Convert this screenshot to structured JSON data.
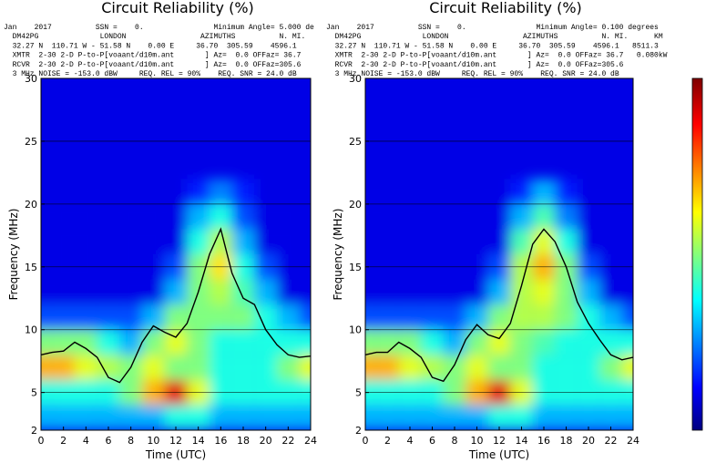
{
  "chart_data": [
    {
      "type": "heatmap-line",
      "title": "Circuit Reliability (%)",
      "header": [
        "Jan    2017          SSN =    0.                Minimum Angle= 5.000 de",
        "  DM42PG              LONDON                 AZIMUTHS          N. MI.",
        "  32.27 N  110.71 W - 51.58 N    0.00 E     36.70  305.59    4596.1",
        "  XMTR  2-30 2-D P-to-P[voaant/d10m.ant       ] Az=  0.0 OFFaz= 36.7",
        "  RCVR  2-30 2-D P-to-P[voaant/d10m.ant       ] Az=  0.0 OFFaz=305.6",
        "  3 MHz NOISE = -153.0 dBW     REQ. REL = 90%    REQ. SNR = 24.0 dB"
      ],
      "x_label": "Time (UTC)",
      "y_label": "Frequency (MHz)",
      "xlim": [
        0,
        24
      ],
      "xticks": [
        0,
        2,
        4,
        6,
        8,
        10,
        12,
        14,
        16,
        18,
        20,
        22,
        24
      ],
      "ylim": [
        2,
        30
      ],
      "yticks": [
        2,
        5,
        10,
        15,
        20,
        25,
        30
      ],
      "grid": true,
      "z_hours": [
        0,
        2,
        4,
        6,
        8,
        10,
        12,
        14,
        16,
        18,
        20,
        22,
        24
      ],
      "z_freqs": [
        3,
        5,
        7,
        9,
        11,
        13,
        15,
        17,
        19,
        21
      ],
      "z": [
        [
          0.2,
          0.2,
          0.2,
          0.2,
          0.2,
          0.2,
          0.3,
          0.3,
          0.2,
          0.2,
          0.2,
          0.2,
          0.2
        ],
        [
          0.3,
          0.3,
          0.3,
          0.3,
          0.4,
          0.6,
          0.8,
          0.5,
          0.3,
          0.3,
          0.3,
          0.3,
          0.3
        ],
        [
          0.6,
          0.6,
          0.5,
          0.45,
          0.4,
          0.5,
          0.4,
          0.4,
          0.3,
          0.3,
          0.3,
          0.4,
          0.5
        ],
        [
          0.4,
          0.4,
          0.4,
          0.3,
          0.2,
          0.4,
          0.5,
          0.4,
          0.3,
          0.3,
          0.3,
          0.3,
          0.3
        ],
        [
          0.1,
          0.1,
          0.1,
          0.1,
          0.1,
          0.2,
          0.4,
          0.4,
          0.4,
          0.4,
          0.3,
          0.2,
          0.1
        ],
        [
          0,
          0,
          0,
          0,
          0,
          0,
          0.2,
          0.4,
          0.45,
          0.35,
          0.2,
          0,
          0
        ],
        [
          0,
          0,
          0,
          0,
          0,
          0,
          0.1,
          0.4,
          0.55,
          0.3,
          0.1,
          0,
          0
        ],
        [
          0,
          0,
          0,
          0,
          0,
          0,
          0,
          0.3,
          0.45,
          0.2,
          0,
          0,
          0
        ],
        [
          0,
          0,
          0,
          0,
          0,
          0,
          0,
          0.2,
          0.3,
          0.1,
          0,
          0,
          0
        ],
        [
          0,
          0,
          0,
          0,
          0,
          0,
          0,
          0.05,
          0.15,
          0.05,
          0,
          0,
          0
        ]
      ],
      "x": [
        0,
        1,
        2,
        3,
        4,
        5,
        6,
        7,
        8,
        9,
        10,
        11,
        12,
        13,
        14,
        15,
        16,
        17,
        18,
        19,
        20,
        21,
        22,
        23,
        24
      ],
      "series": [
        {
          "color": "#000000",
          "values": [
            8,
            8.2,
            8.3,
            9,
            8.5,
            7.8,
            6.2,
            5.8,
            7,
            9,
            10.3,
            9.8,
            9.4,
            10.5,
            13,
            16,
            18,
            14.5,
            12.5,
            12,
            10,
            8.8,
            8,
            7.8,
            7.9
          ]
        }
      ]
    },
    {
      "type": "heatmap-line",
      "title": "Circuit Reliability (%)",
      "header": [
        "Jan    2017          SSN =    0.                Minimum Angle= 0.100 degrees",
        "  DM42PG              LONDON                 AZIMUTHS          N. MI.      KM",
        "  32.27 N  110.71 W - 51.58 N    0.00 E     36.70  305.59    4596.1   8511.3",
        "  XMTR  2-30 2-D P-to-P[voaant/d10m.ant       ] Az=  0.0 OFFaz= 36.7   0.080kW",
        "  RCVR  2-30 2-D P-to-P[voaant/d10m.ant       ] Az=  0.0 OFFaz=305.6",
        "  3 MHz NOISE = -153.0 dBW     REQ. REL = 90%    REQ. SNR = 24.0 dB"
      ],
      "x_label": "Time (UTC)",
      "y_label": "Frequency (MHz)",
      "xlim": [
        0,
        24
      ],
      "xticks": [
        0,
        2,
        4,
        6,
        8,
        10,
        12,
        14,
        16,
        18,
        20,
        22,
        24
      ],
      "ylim": [
        2,
        30
      ],
      "yticks": [
        2,
        5,
        10,
        15,
        20,
        25,
        30
      ],
      "grid": true,
      "z_hours": [
        0,
        2,
        4,
        6,
        8,
        10,
        12,
        14,
        16,
        18,
        20,
        22,
        24
      ],
      "z_freqs": [
        3,
        5,
        7,
        9,
        11,
        13,
        15,
        17,
        19,
        21
      ],
      "z": [
        [
          0.2,
          0.2,
          0.2,
          0.2,
          0.2,
          0.2,
          0.3,
          0.3,
          0.2,
          0.2,
          0.2,
          0.2,
          0.2
        ],
        [
          0.3,
          0.3,
          0.3,
          0.3,
          0.4,
          0.6,
          0.8,
          0.5,
          0.3,
          0.3,
          0.3,
          0.3,
          0.3
        ],
        [
          0.6,
          0.6,
          0.5,
          0.45,
          0.4,
          0.5,
          0.4,
          0.4,
          0.3,
          0.3,
          0.3,
          0.4,
          0.5
        ],
        [
          0.4,
          0.4,
          0.4,
          0.3,
          0.2,
          0.4,
          0.5,
          0.4,
          0.35,
          0.3,
          0.3,
          0.3,
          0.3
        ],
        [
          0.1,
          0.1,
          0.1,
          0.1,
          0.1,
          0.2,
          0.4,
          0.45,
          0.45,
          0.4,
          0.3,
          0.2,
          0.1
        ],
        [
          0,
          0,
          0,
          0,
          0,
          0,
          0.2,
          0.45,
          0.5,
          0.4,
          0.2,
          0,
          0
        ],
        [
          0,
          0,
          0,
          0,
          0,
          0,
          0.1,
          0.45,
          0.6,
          0.4,
          0.1,
          0,
          0
        ],
        [
          0,
          0,
          0,
          0,
          0,
          0,
          0,
          0.35,
          0.5,
          0.3,
          0,
          0,
          0
        ],
        [
          0,
          0,
          0,
          0,
          0,
          0,
          0,
          0.2,
          0.35,
          0.15,
          0,
          0,
          0
        ],
        [
          0,
          0,
          0,
          0,
          0,
          0,
          0,
          0.05,
          0.2,
          0.05,
          0,
          0,
          0
        ]
      ],
      "x": [
        0,
        1,
        2,
        3,
        4,
        5,
        6,
        7,
        8,
        9,
        10,
        11,
        12,
        13,
        14,
        15,
        16,
        17,
        18,
        19,
        20,
        21,
        22,
        23,
        24
      ],
      "series": [
        {
          "color": "#000000",
          "values": [
            8,
            8.2,
            8.2,
            9,
            8.5,
            7.8,
            6.2,
            5.9,
            7.2,
            9.2,
            10.4,
            9.6,
            9.3,
            10.5,
            13.5,
            16.8,
            18,
            17,
            15,
            12.2,
            10.5,
            9.2,
            8,
            7.6,
            7.8
          ]
        }
      ]
    }
  ]
}
